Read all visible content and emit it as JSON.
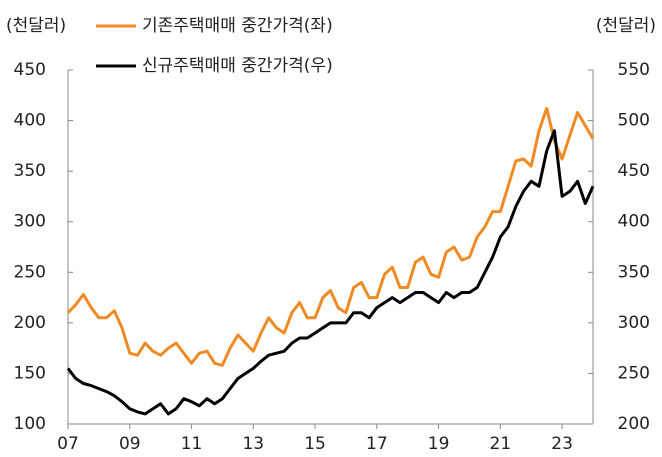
{
  "chart_data": {
    "type": "line",
    "ylabel": "(천달러)",
    "y2label": "(천달러)",
    "x": [
      7,
      7.25,
      7.5,
      7.75,
      8,
      8.25,
      8.5,
      8.75,
      9,
      9.25,
      9.5,
      9.75,
      10,
      10.25,
      10.5,
      10.75,
      11,
      11.25,
      11.5,
      11.75,
      12,
      12.25,
      12.5,
      12.75,
      13,
      13.25,
      13.5,
      13.75,
      14,
      14.25,
      14.5,
      14.75,
      15,
      15.25,
      15.5,
      15.75,
      16,
      16.25,
      16.5,
      16.75,
      17,
      17.25,
      17.5,
      17.75,
      18,
      18.25,
      18.5,
      18.75,
      19,
      19.25,
      19.5,
      19.75,
      20,
      20.25,
      20.5,
      20.75,
      21,
      21.25,
      21.5,
      21.75,
      22,
      22.25,
      22.5,
      22.75,
      23,
      23.25,
      23.5,
      23.75,
      24
    ],
    "series": [
      {
        "name": "기존주택매매 중간가격(좌)",
        "color": "#f08a24",
        "values": [
          210,
          218,
          228,
          215,
          205,
          205,
          212,
          195,
          170,
          168,
          180,
          172,
          168,
          175,
          180,
          170,
          160,
          170,
          172,
          160,
          158,
          175,
          188,
          180,
          172,
          190,
          205,
          195,
          190,
          210,
          220,
          205,
          205,
          225,
          232,
          215,
          210,
          235,
          240,
          225,
          225,
          248,
          255,
          235,
          235,
          260,
          265,
          248,
          245,
          270,
          275,
          262,
          265,
          285,
          295,
          310,
          310,
          335,
          360,
          362,
          355,
          390,
          412,
          380,
          362,
          385,
          408,
          395,
          382
        ]
      },
      {
        "name": "신규주택매매 중간가격(우)",
        "color": "#000000",
        "axis": "y2",
        "values": [
          255,
          245,
          240,
          238,
          235,
          232,
          228,
          222,
          215,
          212,
          210,
          215,
          220,
          210,
          215,
          225,
          222,
          218,
          225,
          220,
          225,
          235,
          245,
          250,
          255,
          262,
          268,
          270,
          272,
          280,
          285,
          285,
          290,
          295,
          300,
          300,
          300,
          310,
          310,
          305,
          315,
          320,
          325,
          320,
          325,
          330,
          330,
          325,
          320,
          330,
          325,
          330,
          330,
          335,
          350,
          365,
          385,
          395,
          415,
          430,
          440,
          435,
          470,
          490,
          425,
          430,
          440,
          418,
          435
        ]
      }
    ],
    "xlim": [
      7,
      24
    ],
    "xticks": [
      {
        "value": 7,
        "label": "07"
      },
      {
        "value": 9,
        "label": "09"
      },
      11,
      13,
      15,
      17,
      19,
      21,
      23
    ],
    "ylim": [
      100,
      450
    ],
    "yticks": [
      100,
      150,
      200,
      250,
      300,
      350,
      400,
      450
    ],
    "y2lim": [
      200,
      550
    ],
    "y2ticks": [
      200,
      250,
      300,
      350,
      400,
      450,
      500,
      550
    ],
    "grid": false
  }
}
